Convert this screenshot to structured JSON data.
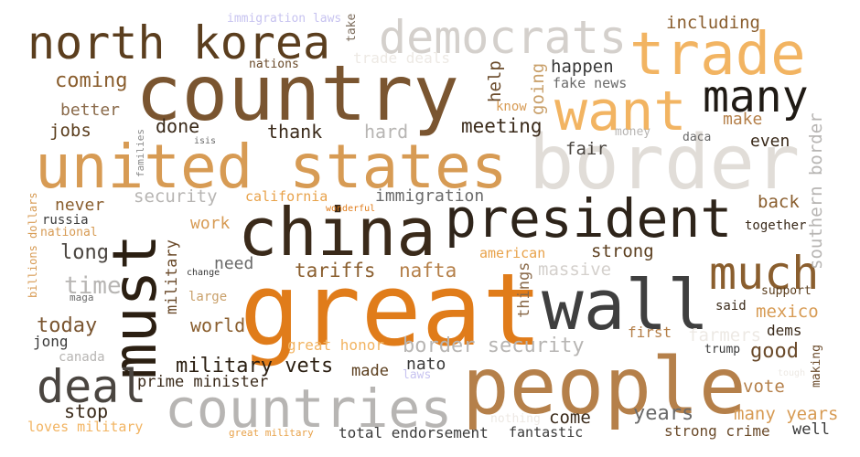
{
  "words": [
    {
      "text": "country",
      "color": "#7a5530"
    },
    {
      "text": "great",
      "color": "#e07c1a"
    },
    {
      "text": "united states",
      "color": "#d79b54"
    },
    {
      "text": "border",
      "color": "#e1ddd8"
    },
    {
      "text": "president",
      "color": "#2e241a"
    },
    {
      "text": "china",
      "color": "#3a2a1a"
    },
    {
      "text": "people",
      "color": "#b5804a"
    },
    {
      "text": "must",
      "color": "#2b1f12"
    },
    {
      "text": "wall",
      "color": "#3f3f3f"
    },
    {
      "text": "countries",
      "color": "#b7b5b3"
    },
    {
      "text": "trade",
      "color": "#f2b462"
    },
    {
      "text": "north korea",
      "color": "#5b3e1e"
    },
    {
      "text": "democrats",
      "color": "#d4d0cc"
    },
    {
      "text": "want",
      "color": "#f2b462"
    },
    {
      "text": "many",
      "color": "#1f1a14"
    },
    {
      "text": "much",
      "color": "#8a5e2e"
    },
    {
      "text": "deal",
      "color": "#4a4540"
    },
    {
      "text": "immigration laws",
      "color": "#c7c3f0"
    },
    {
      "text": "take",
      "color": "#7a6a5a"
    },
    {
      "text": "including",
      "color": "#8a5e2e"
    },
    {
      "text": "nations",
      "color": "#6a4a2a"
    },
    {
      "text": "trade deals",
      "color": "#ede9e4"
    },
    {
      "text": "help",
      "color": "#6a4a2a"
    },
    {
      "text": "going",
      "color": "#c9a06a"
    },
    {
      "text": "happen",
      "color": "#3a3a3a"
    },
    {
      "text": "coming",
      "color": "#8a5e2e"
    },
    {
      "text": "know",
      "color": "#d79b54"
    },
    {
      "text": "fake news",
      "color": "#6a6a6a"
    },
    {
      "text": "better",
      "color": "#8a6a4a"
    },
    {
      "text": "make",
      "color": "#b5804a"
    },
    {
      "text": "jobs",
      "color": "#5b3e1e"
    },
    {
      "text": "done",
      "color": "#3a2a1a"
    },
    {
      "text": "thank",
      "color": "#3a2a1a"
    },
    {
      "text": "hard",
      "color": "#b7b5b3"
    },
    {
      "text": "meeting",
      "color": "#3a2a1a"
    },
    {
      "text": "money",
      "color": "#b7b5b3"
    },
    {
      "text": "daca",
      "color": "#6a6a6a"
    },
    {
      "text": "even",
      "color": "#3a2a1a"
    },
    {
      "text": "families",
      "color": "#8a8a8a"
    },
    {
      "text": "isis",
      "color": "#6a6a6a"
    },
    {
      "text": "fair",
      "color": "#4a4540"
    },
    {
      "text": "southern border",
      "color": "#b7b5b3"
    },
    {
      "text": "security",
      "color": "#b7b5b3"
    },
    {
      "text": "california",
      "color": "#e8a24a"
    },
    {
      "text": "immigration",
      "color": "#6a6a6a"
    },
    {
      "text": "back",
      "color": "#8a5e2e"
    },
    {
      "text": "never",
      "color": "#8a5e2e"
    },
    {
      "text": "billions dollars",
      "color": "#d79b54"
    },
    {
      "text": "russia",
      "color": "#3a3a3a"
    },
    {
      "text": "national",
      "color": "#d79b54"
    },
    {
      "text": "wonderful",
      "color": "#e07c1a"
    },
    {
      "text": "work",
      "color": "#d79b54"
    },
    {
      "text": "together",
      "color": "#3a2a1a"
    },
    {
      "text": "military",
      "color": "#6a4a2a"
    },
    {
      "text": "long",
      "color": "#4a4540"
    },
    {
      "text": "need",
      "color": "#6a6a6a"
    },
    {
      "text": "american",
      "color": "#e8a24a"
    },
    {
      "text": "strong",
      "color": "#5b3e1e"
    },
    {
      "text": "tariffs",
      "color": "#8a5e2e"
    },
    {
      "text": "nafta",
      "color": "#b5804a"
    },
    {
      "text": "massive",
      "color": "#d4d0cc"
    },
    {
      "text": "things",
      "color": "#8a6a4a"
    },
    {
      "text": "change",
      "color": "#3a3a3a"
    },
    {
      "text": "time",
      "color": "#b7b5b3"
    },
    {
      "text": "support",
      "color": "#5b3e1e"
    },
    {
      "text": "maga",
      "color": "#6a6a6a"
    },
    {
      "text": "large",
      "color": "#c9a06a"
    },
    {
      "text": "said",
      "color": "#3a2a1a"
    },
    {
      "text": "mexico",
      "color": "#d79b54"
    },
    {
      "text": "today",
      "color": "#7a5530"
    },
    {
      "text": "world",
      "color": "#8a5e2e"
    },
    {
      "text": "dems",
      "color": "#3a2a1a"
    },
    {
      "text": "first",
      "color": "#b5804a"
    },
    {
      "text": "farmers",
      "color": "#ede9e4"
    },
    {
      "text": "jong",
      "color": "#3a3a3a"
    },
    {
      "text": "great honor",
      "color": "#f2b462"
    },
    {
      "text": "border security",
      "color": "#b7b5b3"
    },
    {
      "text": "good",
      "color": "#6a4a2a"
    },
    {
      "text": "trump",
      "color": "#3a3a3a"
    },
    {
      "text": "canada",
      "color": "#b7b5b3"
    },
    {
      "text": "making",
      "color": "#6a4a2a"
    },
    {
      "text": "military vets",
      "color": "#2b1f12"
    },
    {
      "text": "made",
      "color": "#5b3e1e"
    },
    {
      "text": "nato",
      "color": "#3a3a3a"
    },
    {
      "text": "laws",
      "color": "#c7c3f0"
    },
    {
      "text": "tough",
      "color": "#ede9e4"
    },
    {
      "text": "prime minister",
      "color": "#3a2a1a"
    },
    {
      "text": "vote",
      "color": "#b5804a"
    },
    {
      "text": "stop",
      "color": "#3a2a1a"
    },
    {
      "text": "come",
      "color": "#3a2a1a"
    },
    {
      "text": "years",
      "color": "#6a6a6a"
    },
    {
      "text": "many years",
      "color": "#d79b54"
    },
    {
      "text": "loves military",
      "color": "#f2b462"
    },
    {
      "text": "nothing",
      "color": "#ede9e4"
    },
    {
      "text": "great military",
      "color": "#e8a24a"
    },
    {
      "text": "total endorsement",
      "color": "#3a3a3a"
    },
    {
      "text": "fantastic",
      "color": "#3a3a3a"
    },
    {
      "text": "strong crime",
      "color": "#6a4a2a"
    },
    {
      "text": "well",
      "color": "#3a3a3a"
    }
  ]
}
